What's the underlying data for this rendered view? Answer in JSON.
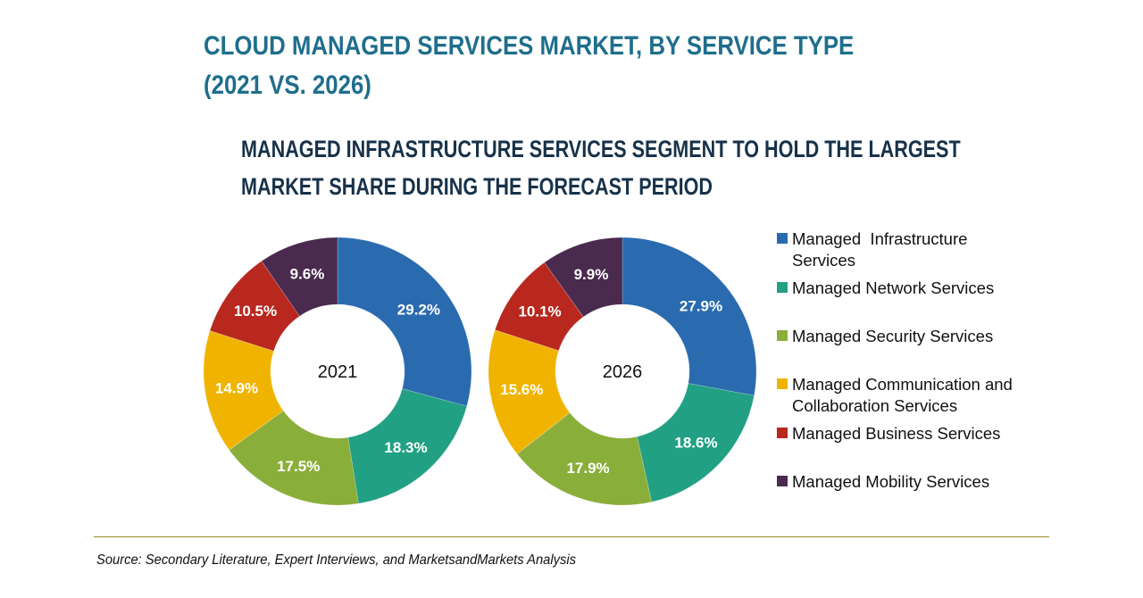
{
  "title_line1": "CLOUD MANAGED SERVICES MARKET, BY SERVICE TYPE",
  "title_line2": "(2021 VS. 2026)",
  "subtitle_line1": "MANAGED INFRASTRUCTURE SERVICES SEGMENT TO HOLD THE LARGEST",
  "subtitle_line2": "MARKET SHARE DURING THE FORECAST PERIOD",
  "source": "Source: Secondary Literature, Expert Interviews, and MarketsandMarkets Analysis",
  "colors": {
    "title": "#1f6e8c",
    "subtitle": "#17324a",
    "infrastructure": "#2a6bb0",
    "network": "#22a084",
    "security": "#8aae3a",
    "communication": "#f0b400",
    "business": "#b8281f",
    "mobility": "#4a2a4e"
  },
  "legend": [
    {
      "label": "Managed  Infrastructure\nServices",
      "color": "#2a6bb0"
    },
    {
      "label": "Managed Network Services",
      "color": "#22a084"
    },
    {
      "label": "Managed Security Services",
      "color": "#8aae3a"
    },
    {
      "label": "Managed Communication and\nCollaboration Services",
      "color": "#f0b400"
    },
    {
      "label": "Managed Business Services",
      "color": "#b8281f"
    },
    {
      "label": "Managed Mobility Services",
      "color": "#4a2a4e"
    }
  ],
  "chart_data": [
    {
      "type": "pie",
      "variant": "donut",
      "title": "2021",
      "center_label": "2021",
      "categories": [
        "Managed Infrastructure Services",
        "Managed Network Services",
        "Managed Security Services",
        "Managed Communication and Collaboration Services",
        "Managed Business Services",
        "Managed Mobility Services"
      ],
      "values": [
        29.2,
        18.3,
        17.5,
        14.9,
        10.5,
        9.6
      ],
      "labels": [
        "29.2%",
        "18.3%",
        "17.5%",
        "14.9%",
        "10.5%",
        "9.6%"
      ],
      "unit": "%",
      "start": "12 o'clock",
      "direction": "clockwise",
      "legend": "right"
    },
    {
      "type": "pie",
      "variant": "donut",
      "title": "2026",
      "center_label": "2026",
      "categories": [
        "Managed Infrastructure Services",
        "Managed Network Services",
        "Managed Security Services",
        "Managed Communication and Collaboration Services",
        "Managed Business Services",
        "Managed Mobility Services"
      ],
      "values": [
        27.9,
        18.6,
        17.9,
        15.6,
        10.1,
        9.9
      ],
      "labels": [
        "27.9%",
        "18.6%",
        "17.9%",
        "15.6%",
        "10.1%",
        "9.9%"
      ],
      "unit": "%",
      "start": "12 o'clock",
      "direction": "clockwise",
      "legend": "right"
    }
  ]
}
